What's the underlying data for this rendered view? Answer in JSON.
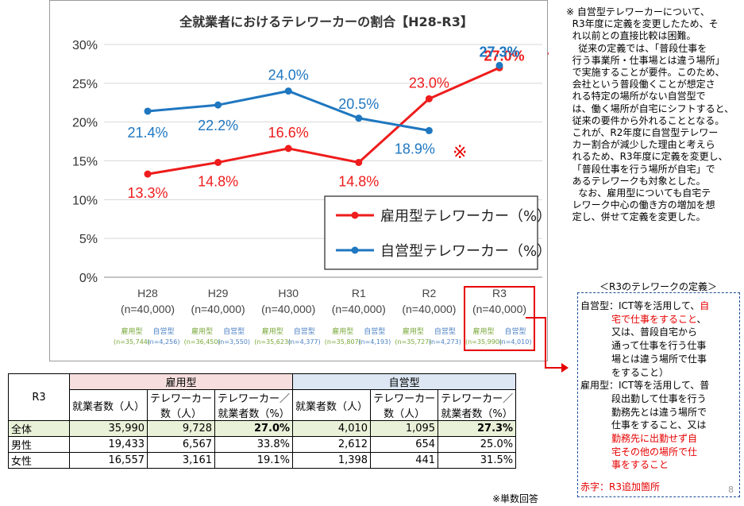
{
  "chart_data": {
    "type": "line",
    "title": "全就業者におけるテレワーカーの割合【H28-R3】",
    "categories": [
      "H28\n(n=40,000)",
      "H29\n(n=40,000)",
      "H30\n(n=40,000)",
      "R1\n(n=40,000)",
      "R2\n(n=40,000)",
      "R3\n(n=40,000)"
    ],
    "ylim": [
      0,
      30
    ],
    "yticks": [
      "0%",
      "5%",
      "10%",
      "15%",
      "20%",
      "25%",
      "30%"
    ],
    "grid": true,
    "legend_position": "inside-bottom-right",
    "series": [
      {
        "name": "雇用型テレワーカー（%）",
        "color": "#ee1c1c",
        "values": [
          13.3,
          14.8,
          16.6,
          14.8,
          23.0,
          27.0
        ],
        "labels": [
          "13.3%",
          "14.8%",
          "16.6%",
          "14.8%",
          "23.0%",
          "27.0%"
        ]
      },
      {
        "name": "自営型テレワーカー（%）",
        "color": "#1f77c0",
        "values": [
          21.4,
          22.2,
          24.0,
          20.5,
          18.9,
          27.3
        ],
        "labels": [
          "21.4%",
          "22.2%",
          "24.0%",
          "20.5%",
          "18.9%",
          "27.3%"
        ],
        "break_before_index": 5
      }
    ],
    "note_marks": [
      "※",
      "※"
    ],
    "sample_sizes": [
      {
        "emp": "雇用型",
        "emp_n": "(n=35,744)",
        "self": "自営型",
        "self_n": "(n=4,256)"
      },
      {
        "emp": "雇用型",
        "emp_n": "(n=36,450)",
        "self": "自営型",
        "self_n": "(n=3,550)"
      },
      {
        "emp": "雇用型",
        "emp_n": "(n=35,623)",
        "self": "自営型",
        "self_n": "(n=4,377)"
      },
      {
        "emp": "雇用型",
        "emp_n": "(n=35,807)",
        "self": "自営型",
        "self_n": "(n=4,193)"
      },
      {
        "emp": "雇用型",
        "emp_n": "(n=35,727)",
        "self": "自営型",
        "self_n": "(n=4,273)"
      },
      {
        "emp": "雇用型",
        "emp_n": "(n=35,990)",
        "self": "自営型",
        "self_n": "(n=4,010)"
      }
    ]
  },
  "note": {
    "text": "※ 自営型テレワーカーについて、\n  R3年度に定義を変更したため、そ\n  れ以前との直接比較は困難。\n    従来の定義では、「普段仕事を\n  行う事業所・仕事場とは違う場所」\n  で実施することが要件。このため、\n  会社という普段働くことが想定さ\n  れる特定の場所がない自営型で\n  は、働く場所が自宅にシフトすると、\n  従来の要件から外れることとなる。\n  これが、R2年度に自営型テレワー\n  カー割合が減少した理由と考えら\n  れるため、R3年度に定義を変更し、\n  「普段仕事を行う場所が自宅」で\n  あるテレワークも対象とした。\n    なお、雇用型についても自宅テ\n  レワーク中心の働き方の増加を想\n  定し、併せて定義を変更した。"
  },
  "definition": {
    "title": "＜R3のテレワークの定義＞",
    "lines": [
      {
        "t": "自営型：ICT等を活用して、",
        "r": "自"
      },
      {
        "t": "",
        "r": "宅で仕事をすること",
        "t2": "、"
      },
      {
        "t": "又は、普段自宅から"
      },
      {
        "t": "通って仕事を行う仕事"
      },
      {
        "t": "場とは違う場所で仕事"
      },
      {
        "t": "をすること）"
      },
      {
        "t": "雇用型：ICT等を活用して、普"
      },
      {
        "t": "段出勤して仕事を行う"
      },
      {
        "t": "勤務先とは違う場所で"
      },
      {
        "t": "仕事をすること、又は"
      },
      {
        "t": "",
        "r": "勤務先に出勤せず自"
      },
      {
        "t": "",
        "r": "宅その他の場所で仕"
      },
      {
        "t": "",
        "r": "事をすること"
      }
    ],
    "footer": "赤字：R3追加箇所"
  },
  "table": {
    "row_header": "R3",
    "group_emp": "雇用型",
    "group_self": "自営型",
    "cols": [
      "就業者数（人）",
      "テレワーカー\n数（人）",
      "テレワーカー／\n就業者数（%）",
      "就業者数（人）",
      "テレワーカー\n数（人）",
      "テレワーカー／\n就業者数（%）"
    ],
    "rows": [
      {
        "label": "全体",
        "values": [
          "35,990",
          "9,728",
          "27.0%",
          "4,010",
          "1,095",
          "27.3%"
        ]
      },
      {
        "label": "男性",
        "values": [
          "19,433",
          "6,567",
          "33.8%",
          "2,612",
          "654",
          "25.0%"
        ]
      },
      {
        "label": "女性",
        "values": [
          "16,557",
          "3,161",
          "19.1%",
          "1,398",
          "441",
          "31.5%"
        ]
      }
    ]
  },
  "footnote": "※単数回答",
  "page_number": "8"
}
